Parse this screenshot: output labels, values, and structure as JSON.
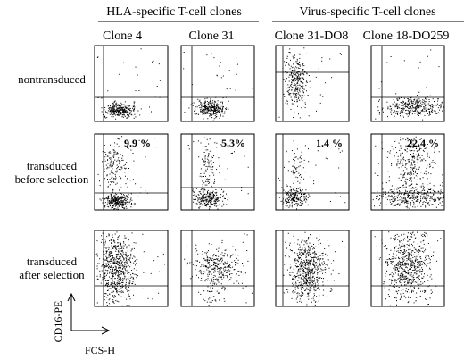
{
  "groups": [
    {
      "label": "HLA-specific T-cell clones"
    },
    {
      "label": "Virus-specific T-cell clones"
    }
  ],
  "columns": [
    {
      "label": "Clone 4"
    },
    {
      "label": "Clone 31"
    },
    {
      "label": "Clone 31-DO8"
    },
    {
      "label": "Clone 18-DO259"
    }
  ],
  "rows": [
    {
      "label_lines": [
        "nontransduced"
      ]
    },
    {
      "label_lines": [
        "transduced",
        "before selection"
      ]
    },
    {
      "label_lines": [
        "transduced",
        "after selection"
      ]
    }
  ],
  "percentages": [
    "9.9 %",
    "5.3%",
    "1.4 %",
    "22.4 %"
  ],
  "axes": {
    "y_label": "CD16-PE",
    "x_label": "FCS-H"
  },
  "colors": {
    "ink": "#000000",
    "background": "#ffffff"
  }
}
